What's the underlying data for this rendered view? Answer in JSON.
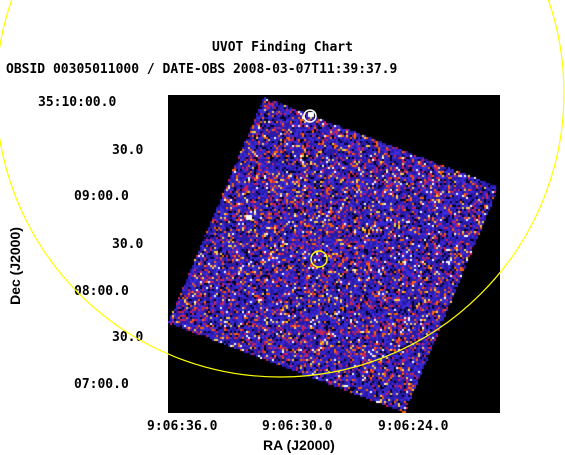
{
  "chart": {
    "title": "UVOT Finding Chart",
    "subtitle": "OBSID 00305011000 / DATE-OBS 2008-03-07T11:39:37.9",
    "xlabel": "RA (J2000)",
    "ylabel": "Dec (J2000)"
  },
  "chart_data": {
    "type": "heatmap",
    "x_ticks": [
      "9:06:36.0",
      "9:06:30.0",
      "9:06:24.0"
    ],
    "y_ticks": [
      "35:10:00.0",
      "30.0",
      "09:00.0",
      "30.0",
      "08:00.0",
      "30.0",
      "07:00.0"
    ],
    "colormap": [
      "#000000",
      "#2a1aa8",
      "#3a2ad8",
      "#cc2255",
      "#ff6600",
      "#ffd24a",
      "#ffffff"
    ],
    "grid": false,
    "markers": [
      {
        "kind": "circle",
        "color": "#ffff00",
        "label": "source position"
      },
      {
        "kind": "circle",
        "color": "#ffffff",
        "label": "nearby source"
      },
      {
        "kind": "error circle",
        "color": "#ffff00",
        "label": "large error region"
      }
    ]
  }
}
